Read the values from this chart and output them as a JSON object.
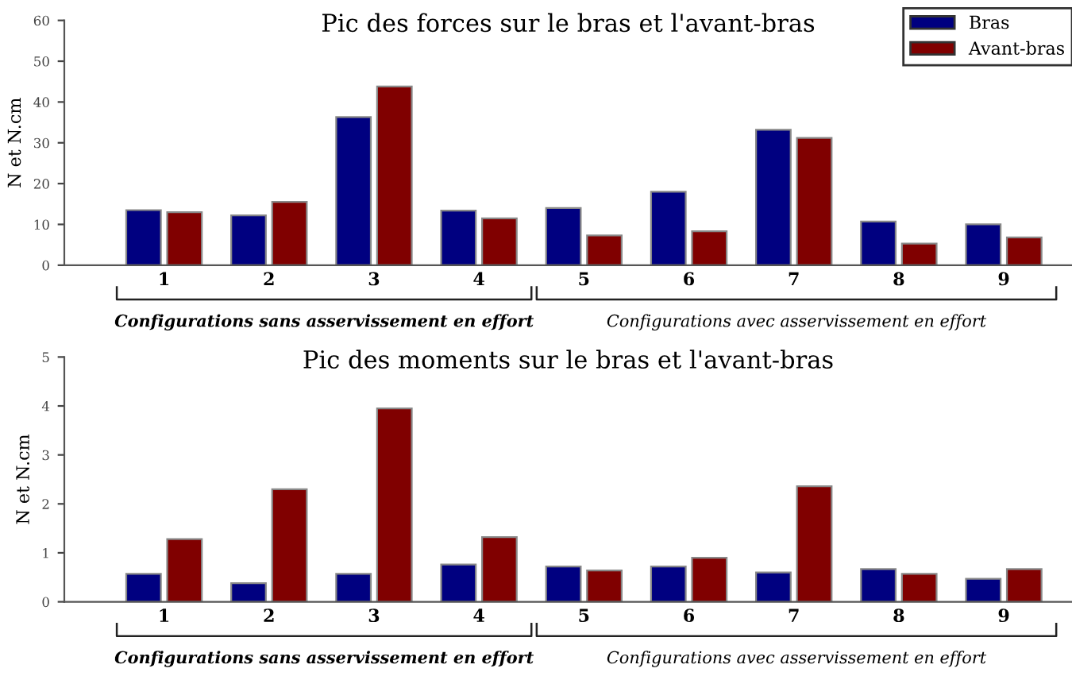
{
  "chart_data": [
    {
      "type": "bar",
      "title": "Pic des forces sur le bras et l'avant-bras",
      "ylabel": "N et N.cm",
      "categories": [
        "1",
        "2",
        "3",
        "4",
        "5",
        "6",
        "7",
        "8",
        "9"
      ],
      "series": [
        {
          "name": "Bras",
          "color": "#000080",
          "values": [
            13.5,
            12.2,
            36.3,
            13.4,
            14,
            18,
            33.2,
            10.7,
            10
          ]
        },
        {
          "name": "Avant-bras",
          "color": "#800000",
          "values": [
            13,
            15.5,
            43.8,
            11.5,
            7.3,
            8.3,
            31.2,
            5.3,
            6.8
          ]
        }
      ],
      "ylim": [
        0,
        60
      ],
      "yticks": [
        0,
        10,
        20,
        30,
        40,
        50,
        60
      ],
      "legend": "top right",
      "grid": false,
      "annotations": [
        "Configurations sans asservissement en effort",
        "Configurations avec asservissement en effort"
      ]
    },
    {
      "type": "bar",
      "title": "Pic des moments sur le bras et l'avant-bras",
      "ylabel": "N et N.cm",
      "categories": [
        "1",
        "2",
        "3",
        "4",
        "5",
        "6",
        "7",
        "8",
        "9"
      ],
      "series": [
        {
          "color": "#000080",
          "values": [
            0.57,
            0.38,
            0.57,
            0.76,
            0.72,
            0.72,
            0.6,
            0.67,
            0.47
          ]
        },
        {
          "color": "#800000",
          "values": [
            1.28,
            2.3,
            3.95,
            1.32,
            0.64,
            0.9,
            2.36,
            0.57,
            0.67
          ]
        }
      ],
      "ylim": [
        0,
        5
      ],
      "yticks": [
        0,
        1,
        2,
        3,
        4,
        5
      ],
      "legend": false,
      "grid": false,
      "annotations": [
        "Configurations sans asservissement en effort",
        "Configurations avec asservissement en effort"
      ]
    }
  ]
}
